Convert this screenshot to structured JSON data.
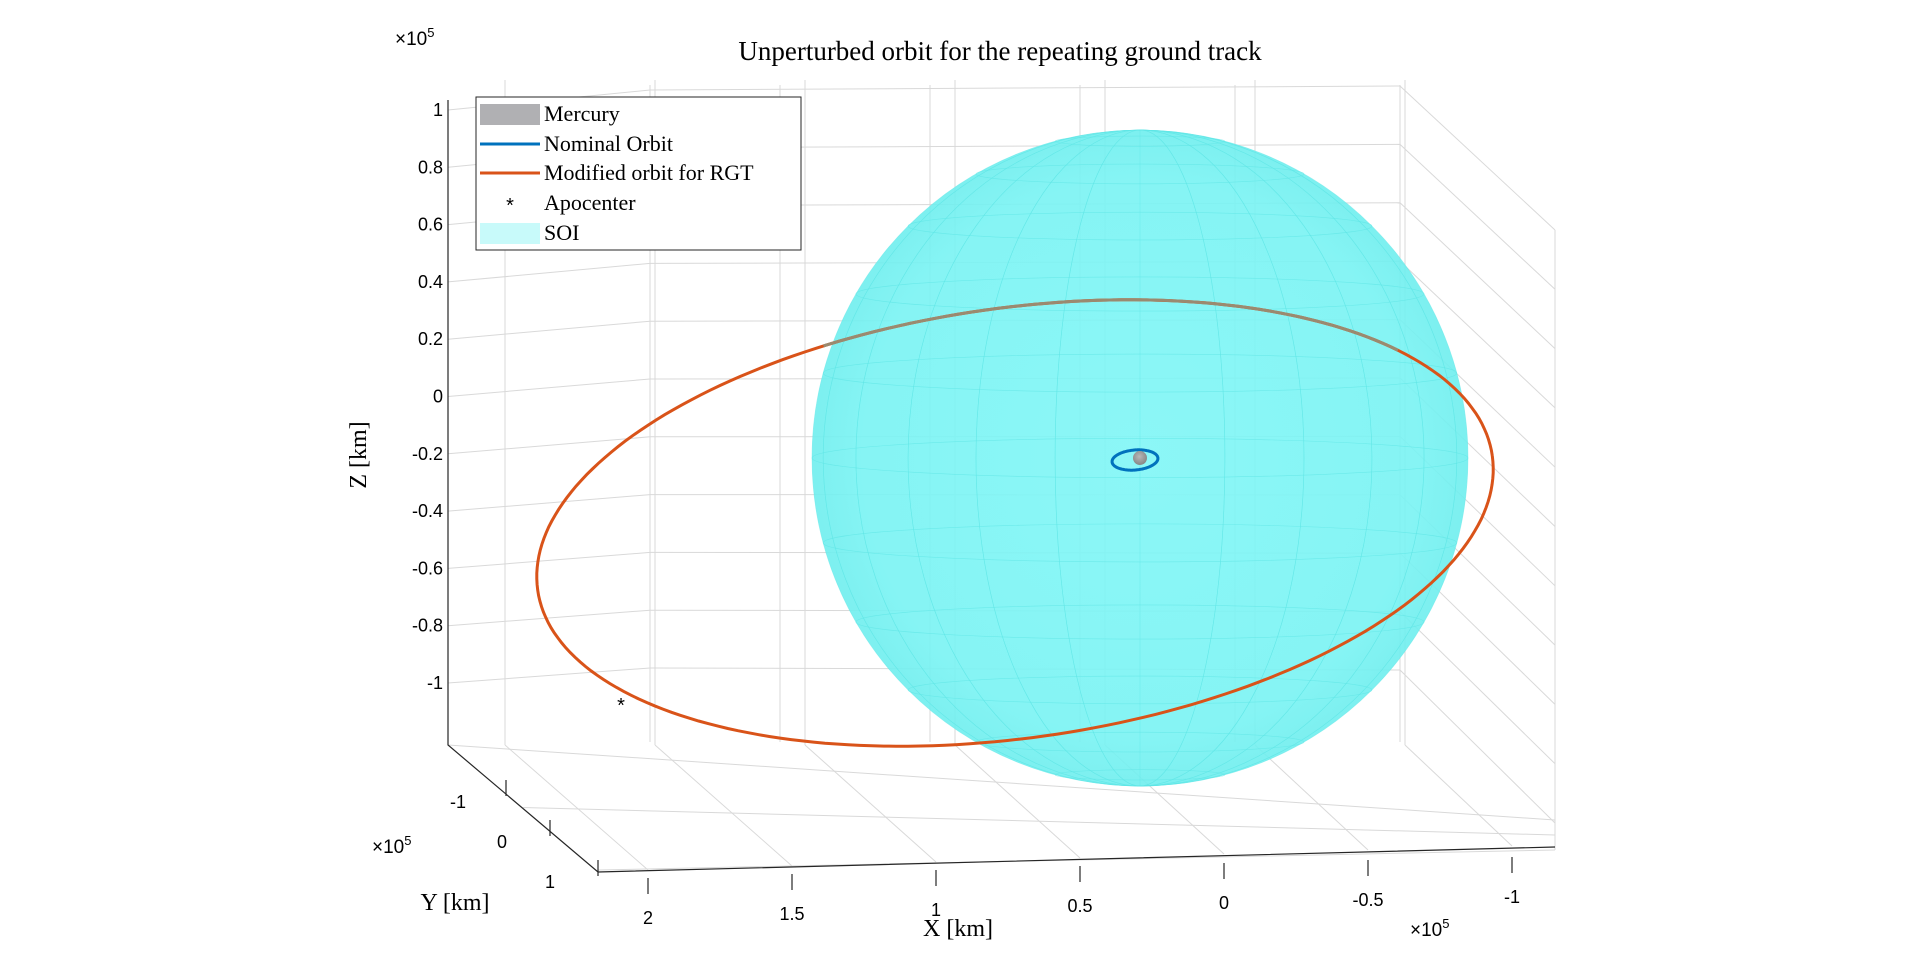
{
  "chart_data": {
    "type": "line",
    "title": "Unperturbed orbit for the repeating ground track",
    "xlabel": "X [km]",
    "ylabel": "Y [km]",
    "zlabel": "Z [km]",
    "exponent_label": "×10",
    "exponent_power": "5",
    "x_ticks": [
      "2",
      "1.5",
      "1",
      "0.5",
      "0",
      "-0.5",
      "-1"
    ],
    "y_ticks": [
      "-1",
      "0",
      "1"
    ],
    "z_ticks": [
      "1",
      "0.8",
      "0.6",
      "0.4",
      "0.2",
      "0",
      "-0.2",
      "-0.4",
      "-0.6",
      "-0.8",
      "-1"
    ],
    "xlim": [
      -1.2,
      2.2
    ],
    "zlim": [
      -1.2,
      1.1
    ],
    "grid": true,
    "legend_placement": "top-left",
    "series": [
      {
        "name": "Mercury",
        "kind": "sphere",
        "color": "#a6a6a6",
        "radius": 0.0244
      },
      {
        "name": "Nominal Orbit",
        "kind": "line",
        "color": "#0072bd",
        "center": [
          0.3,
          0,
          -0.2
        ],
        "semi_axes": [
          0.08,
          0.03
        ]
      },
      {
        "name": "Modified orbit for RGT",
        "kind": "line",
        "color": "#d95319",
        "center": [
          0.55,
          0,
          -0.35
        ],
        "semi_axes": [
          2.1,
          0.72
        ]
      },
      {
        "name": "Apocenter",
        "kind": "marker",
        "color": "#000000",
        "marker": "*",
        "point": [
          1.65,
          0,
          -1.0
        ]
      },
      {
        "name": "SOI",
        "kind": "sphere",
        "color": "#00ffff",
        "center": [
          0.3,
          0,
          -0.2
        ],
        "radius": 1.12
      }
    ]
  }
}
